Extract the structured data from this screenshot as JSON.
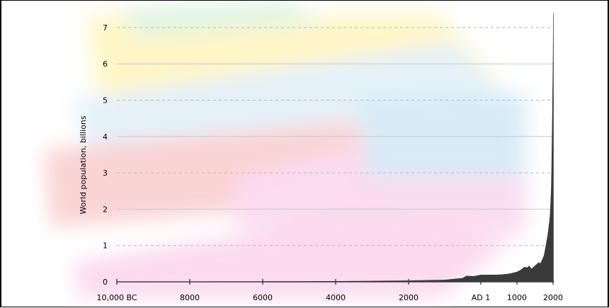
{
  "chart_data": {
    "type": "area",
    "title": "",
    "ylabel": "World population, billions",
    "xlabel": "",
    "ylim": [
      0,
      7.5
    ],
    "xlim": [
      -10000,
      2020
    ],
    "y_ticks": [
      0,
      1,
      2,
      3,
      4,
      5,
      6,
      7
    ],
    "x_ticks": [
      {
        "value": -10000,
        "label": "10,000 BC"
      },
      {
        "value": -8000,
        "label": "8000"
      },
      {
        "value": -6000,
        "label": "6000"
      },
      {
        "value": -4000,
        "label": "4000"
      },
      {
        "value": -2000,
        "label": "2000"
      },
      {
        "value": 1,
        "label": "AD 1"
      },
      {
        "value": 1000,
        "label": "1000"
      },
      {
        "value": 2000,
        "label": "2000"
      }
    ],
    "grid": true,
    "series": [
      {
        "name": "",
        "color": "#3a3a3a",
        "x": [
          -10000,
          -8000,
          -6000,
          -5000,
          -4000,
          -3000,
          -2000,
          -1500,
          -1000,
          -500,
          -400,
          -200,
          1,
          200,
          400,
          600,
          800,
          1000,
          1100,
          1200,
          1300,
          1340,
          1400,
          1500,
          1600,
          1650,
          1700,
          1750,
          1800,
          1850,
          1900,
          1920,
          1940,
          1950,
          1960,
          1970,
          1980,
          1990,
          2000,
          2010
        ],
        "values": [
          0.002,
          0.005,
          0.007,
          0.01,
          0.014,
          0.02,
          0.03,
          0.04,
          0.05,
          0.1,
          0.16,
          0.15,
          0.19,
          0.19,
          0.19,
          0.2,
          0.22,
          0.27,
          0.32,
          0.4,
          0.39,
          0.44,
          0.35,
          0.44,
          0.53,
          0.5,
          0.6,
          0.72,
          0.98,
          1.26,
          1.65,
          1.86,
          2.3,
          2.52,
          3.02,
          3.7,
          4.44,
          5.31,
          6.09,
          7.4
        ]
      }
    ]
  }
}
